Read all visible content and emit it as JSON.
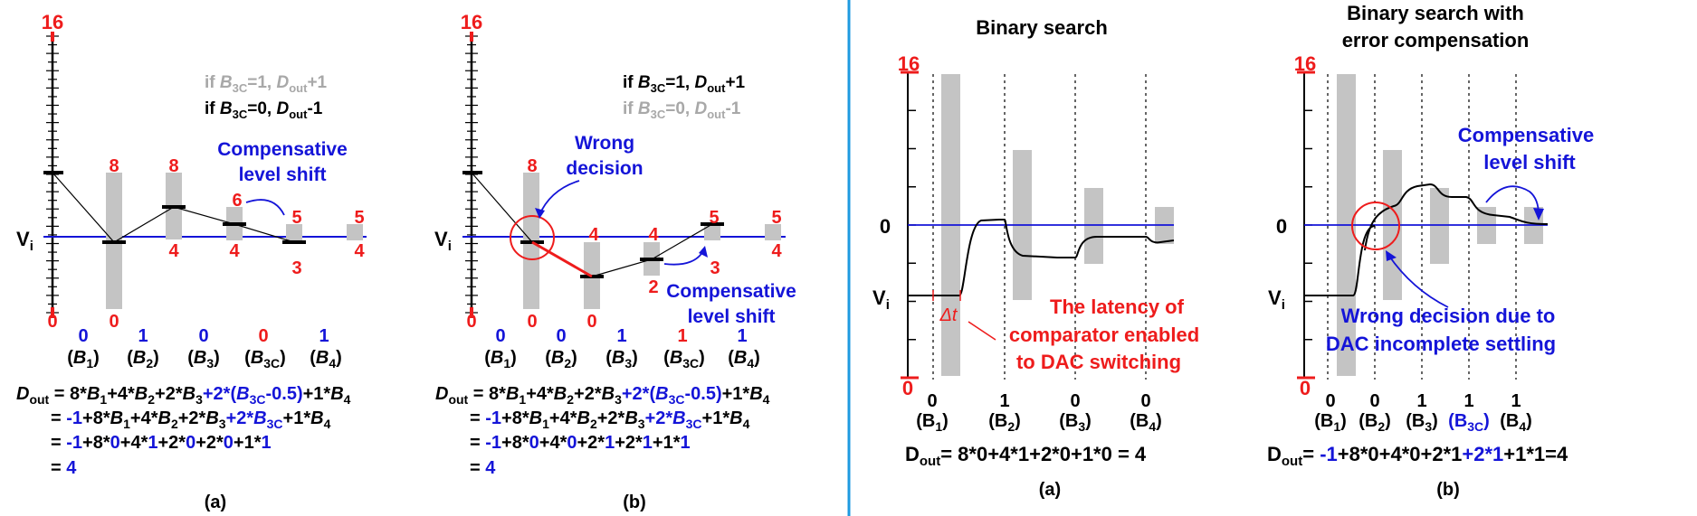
{
  "colors": {
    "red": "#ee1c1c",
    "blue": "#1414d8",
    "grey": "#a8a8a8",
    "bar": "#c4c4c4",
    "divider": "#1e9ae0"
  },
  "left": {
    "a": {
      "top_label": "16",
      "vi": "V",
      "vi_sub": "i",
      "cond_grey": {
        "pre": "if ",
        "b": "B",
        "sub": "3C",
        "mid": "=1, ",
        "d": "D",
        "dsub": "out",
        "post": "+1"
      },
      "cond_black": {
        "pre": "if ",
        "b": "B",
        "sub": "3C",
        "mid": "=0, ",
        "d": "D",
        "dsub": "out",
        "post": "-1"
      },
      "annotation": [
        "Compensative",
        "level shift"
      ],
      "bar_top_labels": [
        "8",
        "8",
        "6",
        "5",
        "5"
      ],
      "bar_bottom_labels": [
        "0",
        "0",
        "4",
        "4",
        "3",
        "4"
      ],
      "bits": [
        "0",
        "1",
        "0",
        "0",
        "1"
      ],
      "bit_names": [
        {
          "pre": "(",
          "b": "B",
          "sub": "1",
          "post": ")"
        },
        {
          "pre": "(",
          "b": "B",
          "sub": "2",
          "post": ")"
        },
        {
          "pre": "(",
          "b": "B",
          "sub": "3",
          "post": ")"
        },
        {
          "pre": "(",
          "b": "B",
          "sub": "3C",
          "post": ")"
        },
        {
          "pre": "(",
          "b": "B",
          "sub": "4",
          "post": ")"
        }
      ],
      "eq1_label": "D",
      "eq1_label_sub": "out",
      "eq1_parts": [
        "= 8*",
        "B",
        "1",
        "+4*",
        "B",
        "2",
        "+2*",
        "B",
        "3",
        "+2*(",
        "B",
        "3C",
        "-0.5)",
        "+1*",
        "B",
        "4"
      ],
      "eq2_parts": [
        "= ",
        "-1",
        "+8*",
        "B",
        "1",
        "+4*",
        "B",
        "2",
        "+2*",
        "B",
        "3",
        "+2*",
        "B",
        "3C",
        "+1*",
        "B",
        "4"
      ],
      "eq3_parts": [
        "= ",
        "-1",
        "+8*",
        "0",
        "+4*",
        "1",
        "+2*",
        "0",
        "+2*",
        "0",
        "+1*",
        "1"
      ],
      "eq4_parts": [
        "= ",
        "4"
      ],
      "caption": "(a)"
    },
    "b": {
      "top_label": "16",
      "vi": "V",
      "vi_sub": "i",
      "cond_black": {
        "pre": "if ",
        "b": "B",
        "sub": "3C",
        "mid": "=1, ",
        "d": "D",
        "dsub": "out",
        "post": "+1"
      },
      "cond_grey": {
        "pre": "if ",
        "b": "B",
        "sub": "3C",
        "mid": "=0, ",
        "d": "D",
        "dsub": "out",
        "post": "-1"
      },
      "wrong": [
        "Wrong",
        "decision"
      ],
      "annotation": [
        "Compensative",
        "level shift"
      ],
      "bar_top_labels": [
        "8",
        "4",
        "4",
        "5",
        "5"
      ],
      "bar_bottom_labels": [
        "0",
        "0",
        "0",
        "2",
        "3",
        "4"
      ],
      "bits": [
        "0",
        "0",
        "1",
        "1",
        "1"
      ],
      "bit_names": [
        {
          "pre": "(",
          "b": "B",
          "sub": "1",
          "post": ")"
        },
        {
          "pre": "(",
          "b": "B",
          "sub": "2",
          "post": ")"
        },
        {
          "pre": "(",
          "b": "B",
          "sub": "3",
          "post": ")"
        },
        {
          "pre": "(",
          "b": "B",
          "sub": "3C",
          "post": ")"
        },
        {
          "pre": "(",
          "b": "B",
          "sub": "4",
          "post": ")"
        }
      ],
      "eq1_label": "D",
      "eq1_label_sub": "out",
      "eq1_parts": [
        "= 8*",
        "B",
        "1",
        "+4*",
        "B",
        "2",
        "+2*",
        "B",
        "3",
        "+2*(",
        "B",
        "3C",
        "-0.5)",
        "+1*",
        "B",
        "4"
      ],
      "eq2_parts": [
        "= ",
        "-1",
        "+8*",
        "B",
        "1",
        "+4*",
        "B",
        "2",
        "+2*",
        "B",
        "3",
        "+2*",
        "B",
        "3C",
        "+1*",
        "B",
        "4"
      ],
      "eq3_parts": [
        "= ",
        "-1",
        "+8*",
        "0",
        "+4*",
        "0",
        "+2*",
        "1",
        "+2*",
        "1",
        "+1*",
        "1"
      ],
      "eq4_parts": [
        "= ",
        "4"
      ],
      "caption": "(b)"
    }
  },
  "right": {
    "a": {
      "title": "Binary search",
      "top_label": "16",
      "zero_label": "0",
      "bottom_label": "0",
      "vi": "V",
      "vi_sub": "i",
      "dt": "Δt",
      "latency": [
        "The latency of",
        "comparator enabled",
        "to DAC switching"
      ],
      "bits": [
        "0",
        "1",
        "0",
        "0"
      ],
      "bit_names": [
        "(B",
        "1",
        ")",
        "(B",
        "2",
        ")",
        "(B",
        "3",
        ")",
        "(B",
        "4",
        ")"
      ],
      "eq": [
        "D",
        "out",
        "= 8*0+4*1+2*0+1*0 = 4"
      ],
      "caption": "(a)"
    },
    "b": {
      "title": [
        "Binary search with",
        "error compensation"
      ],
      "top_label": "16",
      "zero_label": "0",
      "bottom_label": "0",
      "vi": "V",
      "vi_sub": "i",
      "annotation": [
        "Compensative",
        "level shift"
      ],
      "wrong": [
        "Wrong decision due to",
        "DAC incomplete settling"
      ],
      "bits": [
        "0",
        "0",
        "1",
        "1",
        "1"
      ],
      "bit_names": [
        "(B",
        "1",
        ")",
        "(B",
        "2",
        ")",
        "(B",
        "3",
        ")",
        "(B",
        "3C",
        ")",
        "(B",
        "4",
        ")"
      ],
      "eq": [
        "D",
        "out",
        "= ",
        "-1",
        "+8*0+4*0+2*1",
        "+2*1",
        "+1*1=4"
      ],
      "caption": "(b)"
    }
  }
}
